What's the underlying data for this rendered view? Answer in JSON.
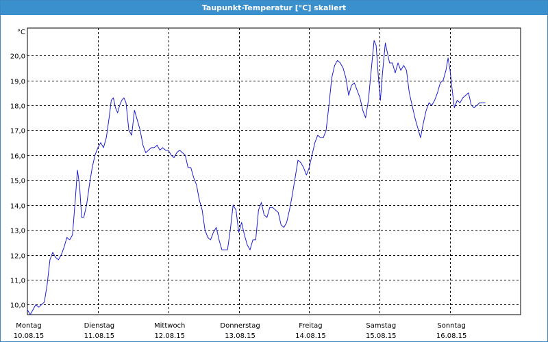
{
  "window": {
    "title": "Taupunkt-Temperatur [°C] skaliert"
  },
  "colors": {
    "titlebar": "#3a8fcd",
    "series": "#1c1ccf",
    "grid": "#000000"
  },
  "chart_data": {
    "type": "line",
    "title": "Taupunkt-Temperatur [°C] skaliert",
    "ylabel": "°C",
    "xlabel": "",
    "ylim": [
      9.6,
      21.1
    ],
    "grid": true,
    "yticks": [
      10.0,
      11.0,
      12.0,
      13.0,
      14.0,
      15.0,
      16.0,
      17.0,
      18.0,
      19.0,
      20.0
    ],
    "ytick_labels": [
      "10,0",
      "11,0",
      "12,0",
      "13,0",
      "14,0",
      "15,0",
      "16,0",
      "17,0",
      "18,0",
      "19,0",
      "20,0"
    ],
    "days": [
      {
        "weekday": "Montag",
        "date": "10.08.15"
      },
      {
        "weekday": "Dienstag",
        "date": "11.08.15"
      },
      {
        "weekday": "Mittwoch",
        "date": "12.08.15"
      },
      {
        "weekday": "Donnerstag",
        "date": "13.08.15"
      },
      {
        "weekday": "Freitag",
        "date": "14.08.15"
      },
      {
        "weekday": "Samstag",
        "date": "15.08.15"
      },
      {
        "weekday": "Sonntag",
        "date": "16.08.15"
      }
    ],
    "x_unit": "day",
    "x_range": [
      0,
      7
    ],
    "series": [
      {
        "points": [
          [
            0.0,
            9.8
          ],
          [
            0.04,
            9.6
          ],
          [
            0.08,
            9.8
          ],
          [
            0.12,
            10.0
          ],
          [
            0.16,
            9.9
          ],
          [
            0.2,
            10.0
          ],
          [
            0.24,
            10.1
          ],
          [
            0.28,
            10.8
          ],
          [
            0.32,
            11.8
          ],
          [
            0.36,
            12.1
          ],
          [
            0.4,
            11.9
          ],
          [
            0.44,
            11.8
          ],
          [
            0.48,
            12.0
          ],
          [
            0.52,
            12.3
          ],
          [
            0.56,
            12.7
          ],
          [
            0.6,
            12.6
          ],
          [
            0.64,
            12.8
          ],
          [
            0.68,
            14.2
          ],
          [
            0.71,
            15.4
          ],
          [
            0.74,
            14.8
          ],
          [
            0.77,
            13.5
          ],
          [
            0.8,
            13.5
          ],
          [
            0.84,
            14.0
          ],
          [
            0.88,
            14.8
          ],
          [
            0.92,
            15.5
          ],
          [
            0.96,
            16.0
          ],
          [
            1.0,
            16.3
          ],
          [
            1.04,
            16.5
          ],
          [
            1.08,
            16.3
          ],
          [
            1.12,
            16.7
          ],
          [
            1.16,
            17.5
          ],
          [
            1.19,
            18.2
          ],
          [
            1.22,
            18.3
          ],
          [
            1.25,
            17.9
          ],
          [
            1.28,
            17.7
          ],
          [
            1.31,
            18.0
          ],
          [
            1.34,
            18.2
          ],
          [
            1.37,
            18.3
          ],
          [
            1.4,
            18.1
          ],
          [
            1.44,
            17.0
          ],
          [
            1.48,
            16.8
          ],
          [
            1.52,
            17.8
          ],
          [
            1.56,
            17.4
          ],
          [
            1.6,
            17.0
          ],
          [
            1.64,
            16.4
          ],
          [
            1.68,
            16.1
          ],
          [
            1.72,
            16.2
          ],
          [
            1.76,
            16.3
          ],
          [
            1.8,
            16.3
          ],
          [
            1.84,
            16.4
          ],
          [
            1.88,
            16.2
          ],
          [
            1.92,
            16.3
          ],
          [
            1.96,
            16.2
          ],
          [
            2.0,
            16.2
          ],
          [
            2.04,
            16.0
          ],
          [
            2.08,
            15.9
          ],
          [
            2.12,
            16.1
          ],
          [
            2.16,
            16.2
          ],
          [
            2.2,
            16.1
          ],
          [
            2.24,
            16.0
          ],
          [
            2.28,
            15.5
          ],
          [
            2.32,
            15.5
          ],
          [
            2.36,
            15.1
          ],
          [
            2.4,
            14.8
          ],
          [
            2.44,
            14.2
          ],
          [
            2.48,
            13.8
          ],
          [
            2.52,
            13.0
          ],
          [
            2.56,
            12.7
          ],
          [
            2.6,
            12.6
          ],
          [
            2.64,
            12.9
          ],
          [
            2.68,
            13.1
          ],
          [
            2.72,
            12.6
          ],
          [
            2.76,
            12.2
          ],
          [
            2.8,
            12.2
          ],
          [
            2.84,
            12.2
          ],
          [
            2.88,
            13.0
          ],
          [
            2.92,
            14.0
          ],
          [
            2.96,
            13.8
          ],
          [
            3.0,
            12.9
          ],
          [
            3.04,
            13.3
          ],
          [
            3.08,
            12.8
          ],
          [
            3.12,
            12.4
          ],
          [
            3.16,
            12.2
          ],
          [
            3.2,
            12.6
          ],
          [
            3.24,
            12.6
          ],
          [
            3.28,
            13.8
          ],
          [
            3.32,
            14.1
          ],
          [
            3.36,
            13.6
          ],
          [
            3.4,
            13.5
          ],
          [
            3.44,
            13.9
          ],
          [
            3.48,
            13.9
          ],
          [
            3.52,
            13.8
          ],
          [
            3.56,
            13.7
          ],
          [
            3.6,
            13.2
          ],
          [
            3.64,
            13.1
          ],
          [
            3.68,
            13.3
          ],
          [
            3.72,
            13.8
          ],
          [
            3.76,
            14.4
          ],
          [
            3.8,
            15.1
          ],
          [
            3.84,
            15.8
          ],
          [
            3.88,
            15.7
          ],
          [
            3.92,
            15.5
          ],
          [
            3.96,
            15.2
          ],
          [
            4.0,
            15.5
          ],
          [
            4.04,
            16.0
          ],
          [
            4.08,
            16.5
          ],
          [
            4.12,
            16.8
          ],
          [
            4.16,
            16.7
          ],
          [
            4.2,
            16.7
          ],
          [
            4.24,
            17.0
          ],
          [
            4.28,
            18.0
          ],
          [
            4.32,
            19.1
          ],
          [
            4.36,
            19.6
          ],
          [
            4.4,
            19.8
          ],
          [
            4.44,
            19.7
          ],
          [
            4.48,
            19.5
          ],
          [
            4.52,
            19.1
          ],
          [
            4.56,
            18.4
          ],
          [
            4.6,
            18.8
          ],
          [
            4.64,
            18.9
          ],
          [
            4.68,
            18.6
          ],
          [
            4.72,
            18.3
          ],
          [
            4.76,
            17.8
          ],
          [
            4.8,
            17.5
          ],
          [
            4.84,
            18.2
          ],
          [
            4.88,
            19.4
          ],
          [
            4.92,
            20.6
          ],
          [
            4.95,
            20.4
          ],
          [
            4.98,
            19.2
          ],
          [
            5.01,
            18.2
          ],
          [
            5.04,
            19.3
          ],
          [
            5.08,
            20.5
          ],
          [
            5.11,
            20.1
          ],
          [
            5.14,
            19.7
          ],
          [
            5.18,
            19.7
          ],
          [
            5.22,
            19.3
          ],
          [
            5.26,
            19.7
          ],
          [
            5.3,
            19.4
          ],
          [
            5.34,
            19.6
          ],
          [
            5.38,
            19.4
          ],
          [
            5.42,
            18.5
          ],
          [
            5.46,
            18.0
          ],
          [
            5.5,
            17.5
          ],
          [
            5.54,
            17.1
          ],
          [
            5.58,
            16.7
          ],
          [
            5.62,
            17.3
          ],
          [
            5.66,
            17.8
          ],
          [
            5.7,
            18.1
          ],
          [
            5.74,
            18.0
          ],
          [
            5.78,
            18.2
          ],
          [
            5.82,
            18.5
          ],
          [
            5.86,
            18.9
          ],
          [
            5.9,
            19.0
          ],
          [
            5.94,
            19.4
          ],
          [
            5.97,
            19.9
          ],
          [
            6.0,
            19.4
          ],
          [
            6.03,
            18.6
          ],
          [
            6.06,
            17.9
          ],
          [
            6.1,
            18.2
          ],
          [
            6.14,
            18.1
          ],
          [
            6.18,
            18.3
          ],
          [
            6.22,
            18.4
          ],
          [
            6.26,
            18.5
          ],
          [
            6.3,
            18.0
          ],
          [
            6.34,
            17.9
          ],
          [
            6.38,
            18.0
          ],
          [
            6.42,
            18.1
          ],
          [
            6.46,
            18.1
          ],
          [
            6.5,
            18.1
          ]
        ]
      }
    ]
  }
}
